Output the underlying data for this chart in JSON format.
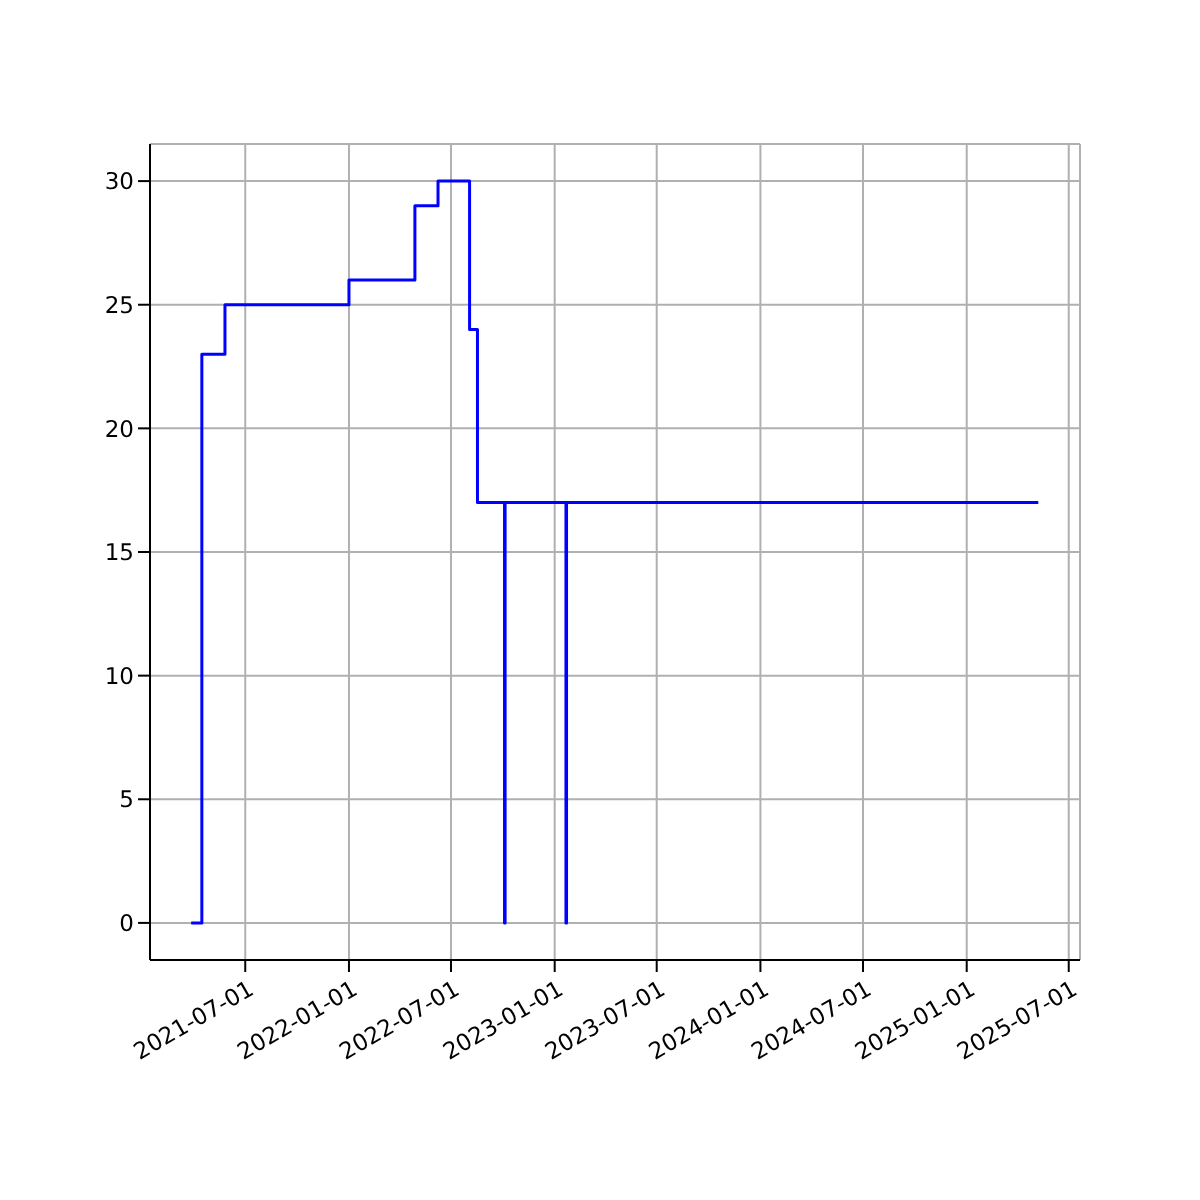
{
  "chart_data": {
    "type": "step",
    "x": [
      "2021-03-27",
      "2021-04-15",
      "2021-05-26",
      "2022-01-01",
      "2022-04-28",
      "2022-06-08",
      "2022-08-03",
      "2022-08-17",
      "2022-10-04",
      "2022-10-05",
      "2023-01-21",
      "2023-01-22",
      "2025-05-08"
    ],
    "series": [
      {
        "color": "#0000ff",
        "values": [
          0,
          23,
          25,
          26,
          29,
          30,
          24,
          17,
          0,
          17,
          0,
          17,
          17
        ]
      }
    ],
    "xlim": [
      "2021-01-13",
      "2025-07-21"
    ],
    "xticks": [
      "2021-07-01",
      "2022-01-01",
      "2022-07-01",
      "2023-01-01",
      "2023-07-01",
      "2024-01-01",
      "2024-07-01",
      "2025-01-01",
      "2025-07-01"
    ],
    "ylim": [
      -1.5,
      31.5
    ],
    "yticks": [
      0,
      5,
      10,
      15,
      20,
      25,
      30
    ],
    "grid": true
  }
}
